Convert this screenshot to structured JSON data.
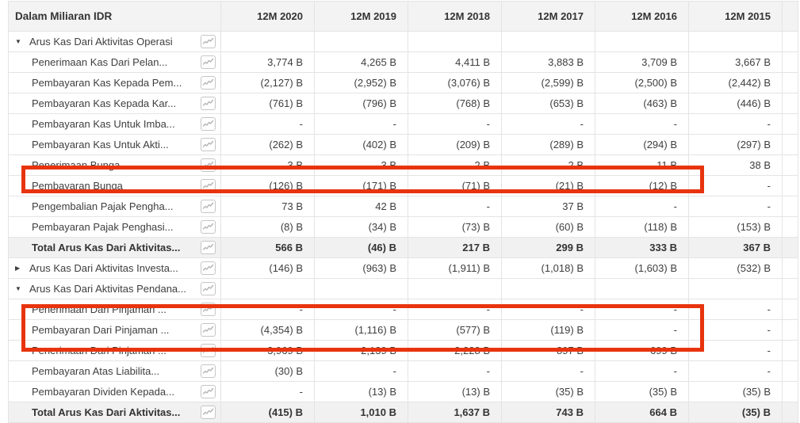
{
  "colors": {
    "highlight_border": "#e8340e",
    "header_background": "#f3f3f3",
    "total_row_background": "#f1f1f1",
    "grid_line": "#e4e4e4",
    "text": "#3e3e3e"
  },
  "icons": {
    "expanded_glyph": "▼",
    "collapsed_glyph": "▶",
    "sparkline": "sparkline-icon"
  },
  "table": {
    "title": "Dalam Miliaran IDR",
    "columns": [
      "12M 2020",
      "12M 2019",
      "12M 2018",
      "12M 2017",
      "12M 2016",
      "12M 2015"
    ],
    "rows": [
      {
        "label": "Arus Kas Dari Aktivitas Operasi",
        "type": "group",
        "toggle": "expanded",
        "values": [
          "",
          "",
          "",
          "",
          "",
          ""
        ]
      },
      {
        "label": "Penerimaan Kas Dari Pelan...",
        "type": "item",
        "toggle": null,
        "values": [
          "3,774 B",
          "4,265 B",
          "4,411 B",
          "3,883 B",
          "3,709 B",
          "3,667 B"
        ]
      },
      {
        "label": "Pembayaran Kas Kepada Pem...",
        "type": "item",
        "toggle": null,
        "values": [
          "(2,127) B",
          "(2,952) B",
          "(3,076) B",
          "(2,599) B",
          "(2,500) B",
          "(2,442) B"
        ]
      },
      {
        "label": "Pembayaran Kas Kepada Kar...",
        "type": "item",
        "toggle": null,
        "values": [
          "(761) B",
          "(796) B",
          "(768) B",
          "(653) B",
          "(463) B",
          "(446) B"
        ]
      },
      {
        "label": "Pembayaran Kas Untuk Imba...",
        "type": "item",
        "toggle": null,
        "values": [
          "-",
          "-",
          "-",
          "-",
          "-",
          "-"
        ]
      },
      {
        "label": "Pembayaran Kas Untuk Akti...",
        "type": "item",
        "toggle": null,
        "values": [
          "(262) B",
          "(402) B",
          "(209) B",
          "(289) B",
          "(294) B",
          "(297) B"
        ]
      },
      {
        "label": "Penerimaan Bunga",
        "type": "item",
        "toggle": null,
        "values": [
          "3 B",
          "3 B",
          "2 B",
          "2 B",
          "11 B",
          "38 B"
        ]
      },
      {
        "label": "Pembayaran Bunga",
        "type": "item",
        "toggle": null,
        "values": [
          "(126) B",
          "(171) B",
          "(71) B",
          "(21) B",
          "(12) B",
          "-"
        ]
      },
      {
        "label": "Pengembalian Pajak Pengha...",
        "type": "item",
        "toggle": null,
        "values": [
          "73 B",
          "42 B",
          "-",
          "37 B",
          "-",
          "-"
        ]
      },
      {
        "label": "Pembayaran Pajak Penghasi...",
        "type": "item",
        "toggle": null,
        "values": [
          "(8) B",
          "(34) B",
          "(73) B",
          "(60) B",
          "(118) B",
          "(153) B"
        ]
      },
      {
        "label": "Total Arus Kas Dari Aktivitas...",
        "type": "total",
        "toggle": null,
        "values": [
          "566 B",
          "(46) B",
          "217 B",
          "299 B",
          "333 B",
          "367 B"
        ]
      },
      {
        "label": "Arus Kas Dari Aktivitas Investa...",
        "type": "group",
        "toggle": "collapsed",
        "values": [
          "(146) B",
          "(963) B",
          "(1,911) B",
          "(1,018) B",
          "(1,603) B",
          "(532) B"
        ]
      },
      {
        "label": "Arus Kas Dari Aktivitas Pendana...",
        "type": "group",
        "toggle": "expanded",
        "values": [
          "",
          "",
          "",
          "",
          "",
          ""
        ]
      },
      {
        "label": "Penerimaan Dari Pinjaman ...",
        "type": "item",
        "toggle": null,
        "values": [
          "-",
          "-",
          "-",
          "-",
          "-",
          "-"
        ]
      },
      {
        "label": "Pembayaran Dari Pinjaman ...",
        "type": "item",
        "toggle": null,
        "values": [
          "(4,354) B",
          "(1,116) B",
          "(577) B",
          "(119) B",
          "-",
          "-"
        ]
      },
      {
        "label": "Penerimaan Dari Pinjaman ...",
        "type": "item",
        "toggle": null,
        "values": [
          "3,969 B",
          "2,139 B",
          "2,228 B",
          "897 B",
          "699 B",
          "-"
        ]
      },
      {
        "label": "Pembayaran Atas Liabilita...",
        "type": "item",
        "toggle": null,
        "values": [
          "(30) B",
          "-",
          "-",
          "-",
          "-",
          "-"
        ]
      },
      {
        "label": "Pembayaran Dividen Kepada...",
        "type": "item",
        "toggle": null,
        "values": [
          "-",
          "(13) B",
          "(13) B",
          "(35) B",
          "(35) B",
          "(35) B"
        ]
      },
      {
        "label": "Total Arus Kas Dari Aktivitas...",
        "type": "total",
        "toggle": null,
        "values": [
          "(415) B",
          "1,010 B",
          "1,637 B",
          "743 B",
          "664 B",
          "(35) B"
        ]
      }
    ],
    "highlights": [
      {
        "name": "pembayaran-bunga-highlight",
        "rows": [
          7,
          7
        ]
      },
      {
        "name": "pinjaman-rows-highlight",
        "rows": [
          14,
          15
        ]
      }
    ]
  }
}
